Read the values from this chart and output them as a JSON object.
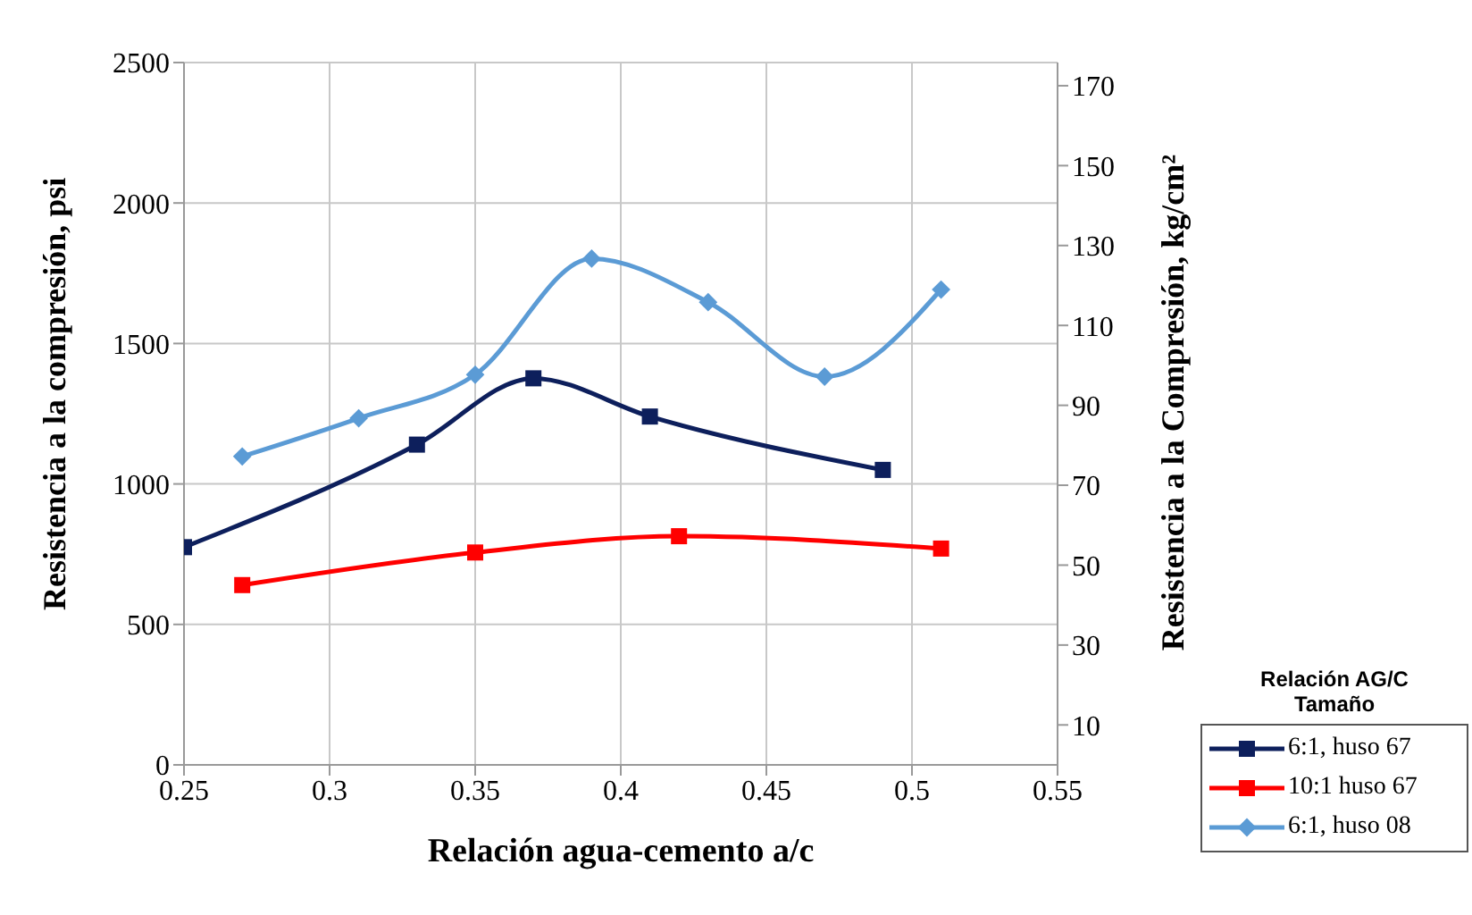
{
  "chart_data": {
    "type": "line",
    "xlabel": "Relación agua-cemento a/c",
    "ylabel": "Resistencia a la compresión, psi",
    "y2label": "Resistencia a la Compresión, kg/cm²",
    "legend_title": "Relación AG/C Tamaño",
    "xlim": [
      0.25,
      0.55
    ],
    "xticks": [
      0.25,
      0.3,
      0.35,
      0.4,
      0.45,
      0.5,
      0.55
    ],
    "ylim": [
      0,
      2500
    ],
    "yticks": [
      0,
      500,
      1000,
      1500,
      2000,
      2500
    ],
    "y2lim": [
      0,
      175.8
    ],
    "y2ticks": [
      10,
      30,
      50,
      70,
      90,
      110,
      130,
      150,
      170
    ],
    "grid": true,
    "legend": "bottom right",
    "line_style": "solid",
    "series": [
      {
        "name": "6:1, huso 67",
        "color": "#0d1f5c",
        "marker": "square",
        "x": [
          0.25,
          0.33,
          0.37,
          0.41,
          0.49
        ],
        "values": [
          775,
          1140,
          1376,
          1240,
          1050
        ]
      },
      {
        "name": "10:1 huso 67",
        "color": "#ff0000",
        "marker": "square",
        "x": [
          0.27,
          0.35,
          0.42,
          0.51
        ],
        "values": [
          640,
          756,
          814,
          770
        ]
      },
      {
        "name": "6:1, huso 08",
        "color": "#5b9bd5",
        "marker": "diamond",
        "x": [
          0.27,
          0.31,
          0.35,
          0.39,
          0.43,
          0.47,
          0.51
        ],
        "values": [
          1098,
          1234,
          1389,
          1802,
          1647,
          1382,
          1692
        ]
      }
    ]
  }
}
